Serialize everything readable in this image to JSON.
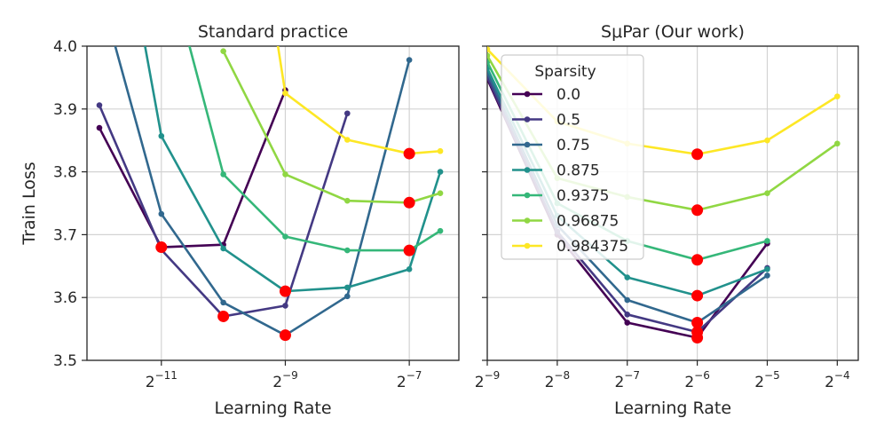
{
  "chart_data": [
    {
      "type": "line",
      "title": "Standard practice",
      "xlabel": "Learning Rate",
      "ylabel": "Train Loss",
      "xscale": "log2",
      "xlim": [
        -12.2,
        -6.2
      ],
      "ylim": [
        3.5,
        4.0
      ],
      "yticks": [
        3.5,
        3.6,
        3.7,
        3.8,
        3.9,
        4.0
      ],
      "ytick_labels": [
        "3.5",
        "3.6",
        "3.7",
        "3.8",
        "3.9",
        "4.0"
      ],
      "xticks": [
        -11,
        -9,
        -7
      ],
      "xtick_labels": [
        {
          "base": "2",
          "exp": "−11"
        },
        {
          "base": "2",
          "exp": "−9"
        },
        {
          "base": "2",
          "exp": "−7"
        }
      ],
      "grid": true,
      "series": [
        {
          "name": "0.0",
          "color": "#440154",
          "points": [
            [
              -12,
              3.87
            ],
            [
              -11,
              3.68
            ],
            [
              -10,
              3.684
            ],
            [
              -9,
              3.93
            ]
          ]
        },
        {
          "name": "0.5",
          "color": "#443983",
          "points": [
            [
              -12,
              3.906
            ],
            [
              -11,
              3.676
            ],
            [
              -10,
              3.57
            ],
            [
              -9,
              3.587
            ],
            [
              -8,
              3.893
            ]
          ]
        },
        {
          "name": "0.75",
          "color": "#31688e",
          "points": [
            [
              -11.8,
              4.02
            ],
            [
              -11,
              3.733
            ],
            [
              -10,
              3.592
            ],
            [
              -9,
              3.54
            ],
            [
              -8,
              3.602
            ],
            [
              -7,
              3.978
            ]
          ]
        },
        {
          "name": "0.875",
          "color": "#21918c",
          "points": [
            [
              -11.3,
              4.02
            ],
            [
              -11,
              3.857
            ],
            [
              -10,
              3.678
            ],
            [
              -9,
              3.61
            ],
            [
              -8,
              3.616
            ],
            [
              -7,
              3.645
            ],
            [
              -6.5,
              3.8
            ]
          ]
        },
        {
          "name": "0.9375",
          "color": "#35b779",
          "points": [
            [
              -10.6,
              4.02
            ],
            [
              -10,
              3.796
            ],
            [
              -9,
              3.697
            ],
            [
              -8,
              3.675
            ],
            [
              -7,
              3.675
            ],
            [
              -6.5,
              3.706
            ]
          ]
        },
        {
          "name": "0.96875",
          "color": "#90d743",
          "points": [
            [
              -10,
              3.992
            ],
            [
              -9,
              3.796
            ],
            [
              -8,
              3.754
            ],
            [
              -7,
              3.751
            ],
            [
              -6.5,
              3.766
            ]
          ]
        },
        {
          "name": "0.984375",
          "color": "#fde725",
          "points": [
            [
              -9.15,
              4.02
            ],
            [
              -9,
              3.925
            ],
            [
              -8,
              3.851
            ],
            [
              -7,
              3.829
            ],
            [
              -6.5,
              3.833
            ]
          ]
        }
      ],
      "optimum_points": [
        [
          -11,
          3.68
        ],
        [
          -10,
          3.57
        ],
        [
          -9,
          3.54
        ],
        [
          -9,
          3.61
        ],
        [
          -7,
          3.675
        ],
        [
          -7,
          3.751
        ],
        [
          -7,
          3.829
        ]
      ]
    },
    {
      "type": "line",
      "title": "SμPar (Our work)",
      "xlabel": "Learning Rate",
      "ylabel": "",
      "xscale": "log2",
      "xlim": [
        -9,
        -3.7
      ],
      "ylim": [
        3.5,
        4.0
      ],
      "xticks": [
        -9,
        -8,
        -7,
        -6,
        -5,
        -4
      ],
      "xtick_labels": [
        {
          "base": "2",
          "exp": "−9"
        },
        {
          "base": "2",
          "exp": "−8"
        },
        {
          "base": "2",
          "exp": "−7"
        },
        {
          "base": "2",
          "exp": "−6"
        },
        {
          "base": "2",
          "exp": "−5"
        },
        {
          "base": "2",
          "exp": "−4"
        }
      ],
      "grid": true,
      "legend": {
        "title": "Sparsity",
        "placement": "upper-left",
        "entries": [
          "0.0",
          "0.5",
          "0.75",
          "0.875",
          "0.9375",
          "0.96875",
          "0.984375"
        ]
      },
      "series": [
        {
          "name": "0.0",
          "color": "#440154",
          "points": [
            [
              -9,
              3.948
            ],
            [
              -8,
              3.7
            ],
            [
              -7,
              3.56
            ],
            [
              -6,
              3.536
            ],
            [
              -5,
              3.686
            ]
          ]
        },
        {
          "name": "0.5",
          "color": "#443983",
          "points": [
            [
              -9,
              3.951
            ],
            [
              -8,
              3.705
            ],
            [
              -7,
              3.573
            ],
            [
              -6,
              3.545
            ],
            [
              -5,
              3.647
            ]
          ]
        },
        {
          "name": "0.75",
          "color": "#31688e",
          "points": [
            [
              -9,
              3.958
            ],
            [
              -8,
              3.715
            ],
            [
              -7,
              3.596
            ],
            [
              -6,
              3.56
            ],
            [
              -5,
              3.635
            ]
          ]
        },
        {
          "name": "0.875",
          "color": "#21918c",
          "points": [
            [
              -9,
              3.965
            ],
            [
              -8,
              3.73
            ],
            [
              -7,
              3.632
            ],
            [
              -6,
              3.603
            ],
            [
              -5,
              3.645
            ]
          ]
        },
        {
          "name": "0.9375",
          "color": "#35b779",
          "points": [
            [
              -9,
              3.975
            ],
            [
              -8,
              3.75
            ],
            [
              -7,
              3.69
            ],
            [
              -6,
              3.66
            ],
            [
              -5,
              3.69
            ]
          ]
        },
        {
          "name": "0.96875",
          "color": "#90d743",
          "points": [
            [
              -9,
              3.985
            ],
            [
              -8,
              3.79
            ],
            [
              -7,
              3.76
            ],
            [
              -6,
              3.739
            ],
            [
              -5,
              3.766
            ],
            [
              -4,
              3.845
            ]
          ]
        },
        {
          "name": "0.984375",
          "color": "#fde725",
          "points": [
            [
              -9,
              3.995
            ],
            [
              -8,
              3.88
            ],
            [
              -7,
              3.845
            ],
            [
              -6,
              3.828
            ],
            [
              -5,
              3.85
            ],
            [
              -4,
              3.92
            ]
          ]
        }
      ],
      "optimum_points": [
        [
          -6,
          3.536
        ],
        [
          -6,
          3.545
        ],
        [
          -6,
          3.56
        ],
        [
          -6,
          3.603
        ],
        [
          -6,
          3.66
        ],
        [
          -6,
          3.739
        ],
        [
          -6,
          3.828
        ]
      ]
    }
  ]
}
